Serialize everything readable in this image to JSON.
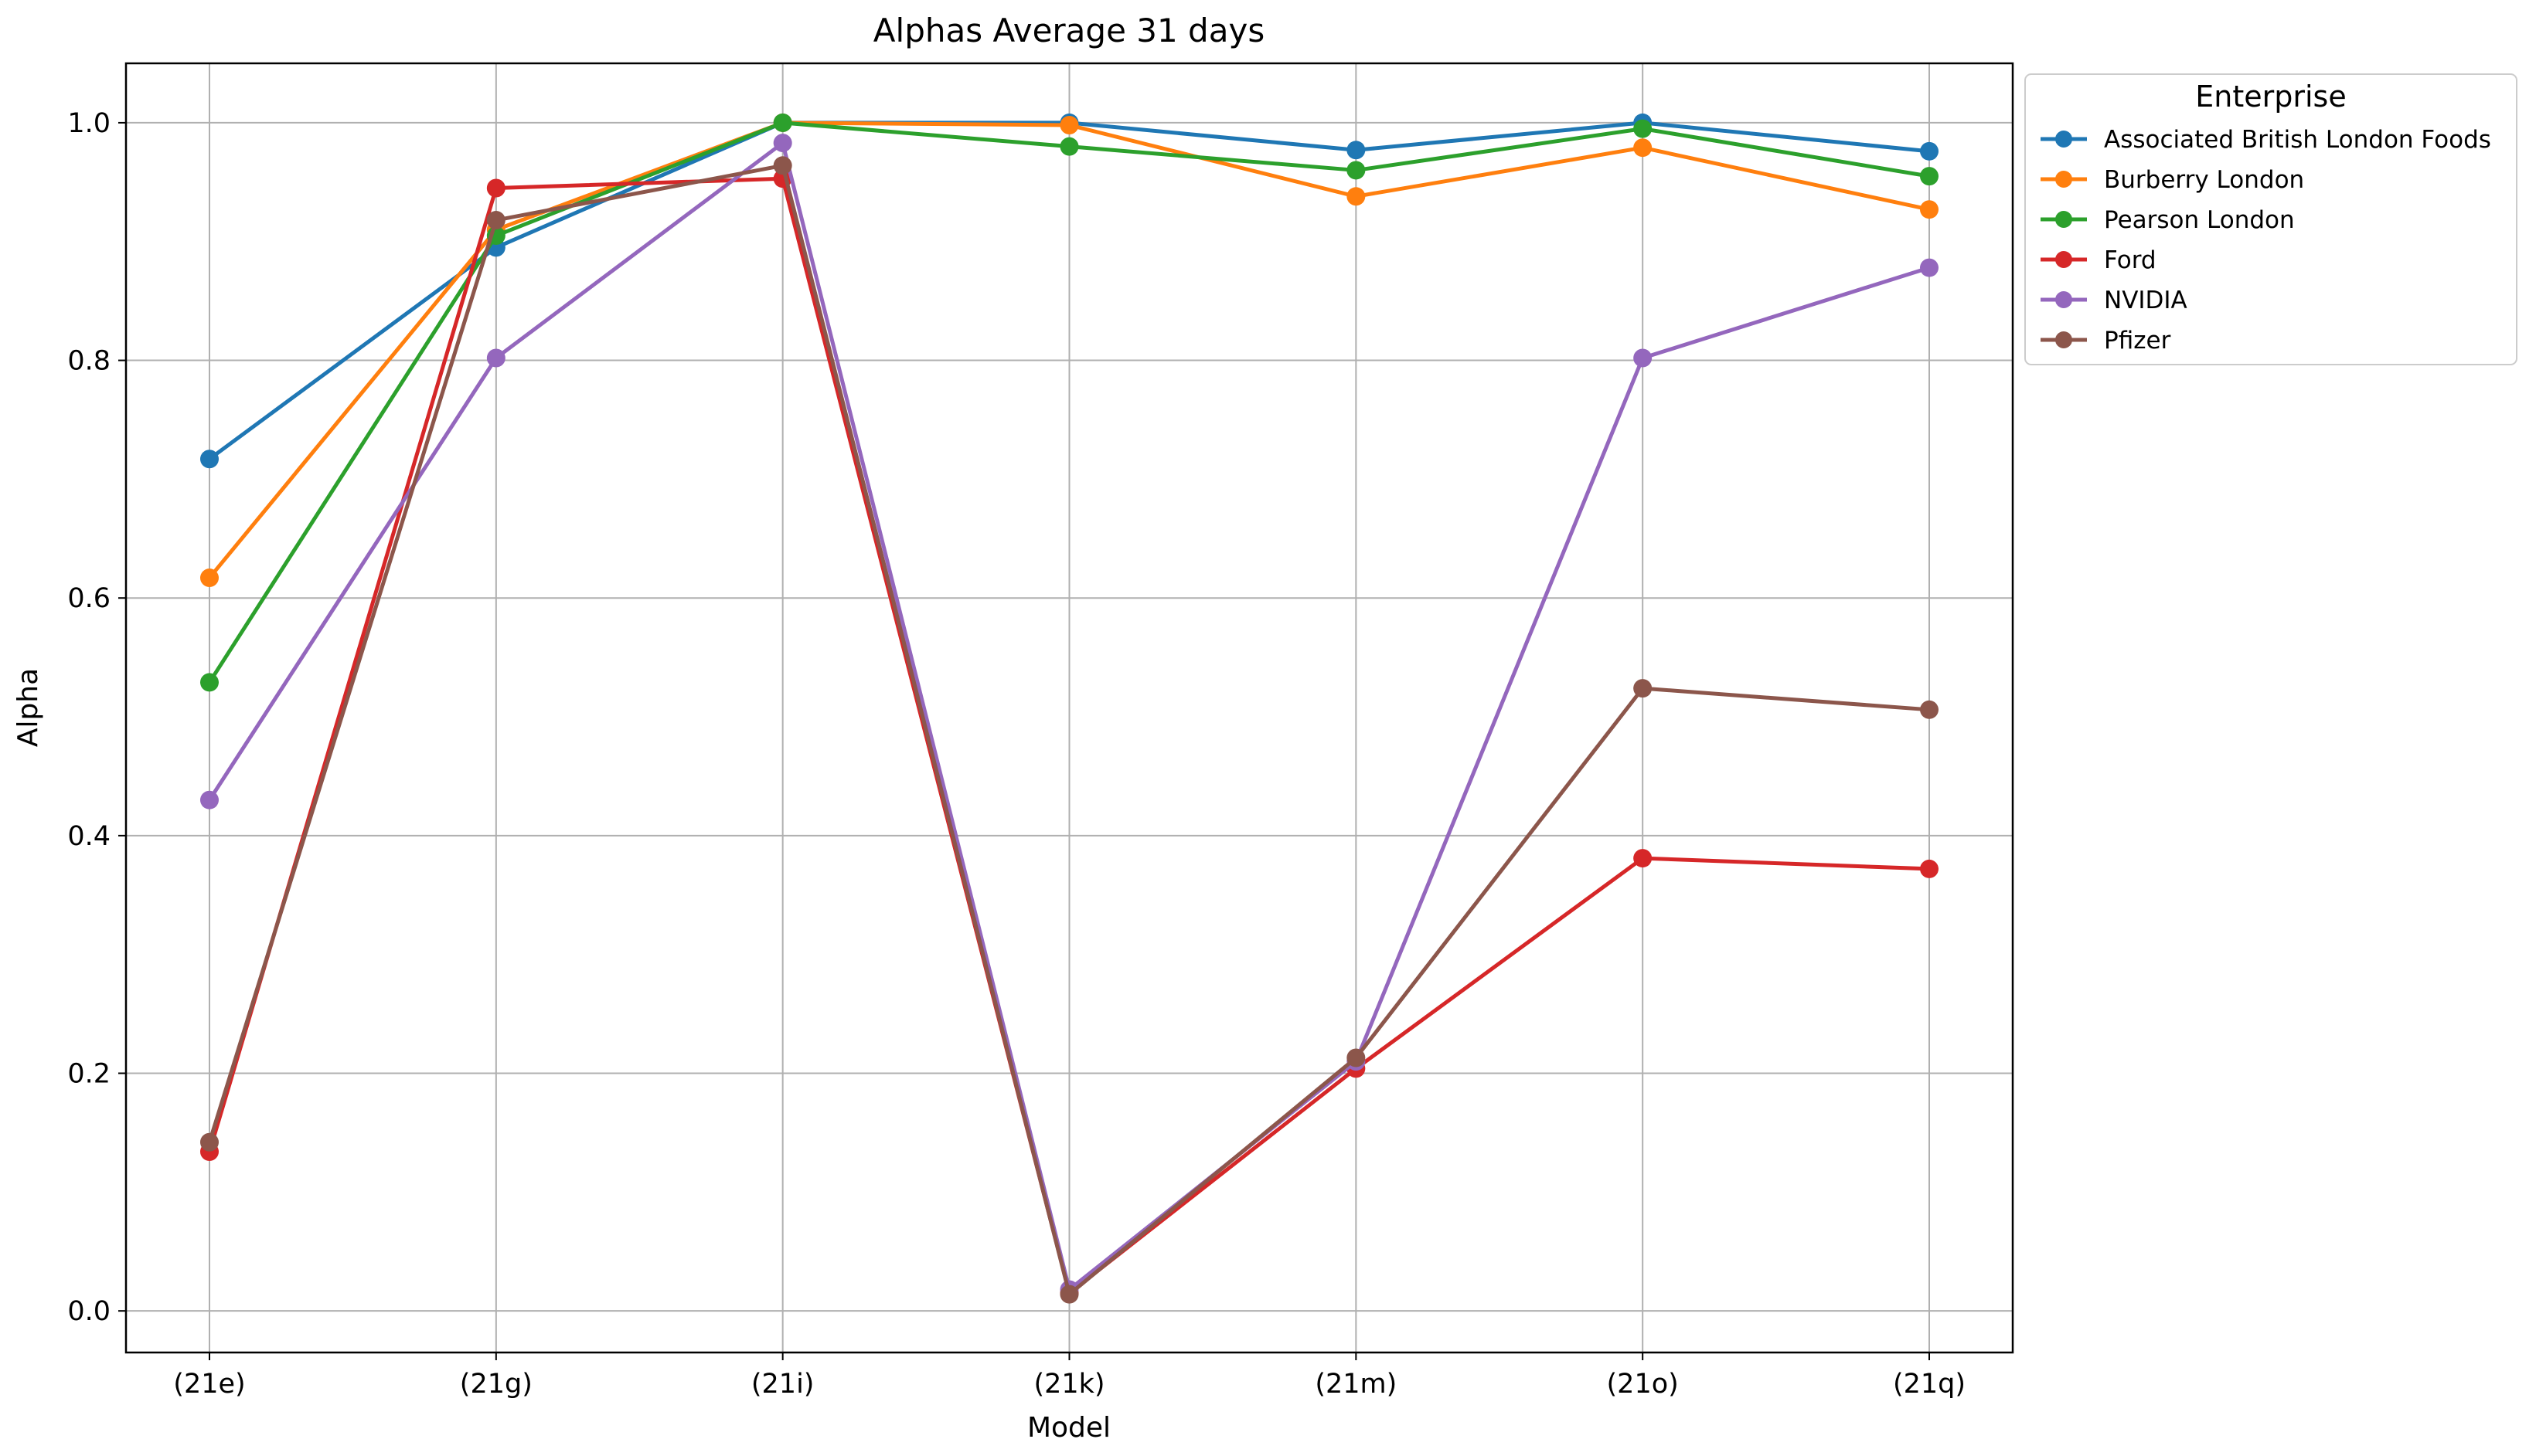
{
  "chart_data": {
    "type": "line",
    "title": "Alphas Average 31 days",
    "xlabel": "Model",
    "ylabel": "Alpha",
    "categories": [
      "(21e)",
      "(21g)",
      "(21i)",
      "(21k)",
      "(21m)",
      "(21o)",
      "(21q)"
    ],
    "ylim": [
      -0.035,
      1.05
    ],
    "yticks": [
      0.0,
      0.2,
      0.4,
      0.6,
      0.8,
      1.0
    ],
    "ytick_labels": [
      "0.0",
      "0.2",
      "0.4",
      "0.6",
      "0.8",
      "1.0"
    ],
    "grid": true,
    "legend_title": "Enterprise",
    "legend_position": "outside-top-right",
    "series": [
      {
        "name": "Associated British London Foods",
        "color": "#1f77b4",
        "values": [
          0.717,
          0.895,
          1.0,
          1.0,
          0.977,
          1.0,
          0.976
        ]
      },
      {
        "name": "Burberry London",
        "color": "#ff7f0e",
        "values": [
          0.617,
          0.91,
          1.0,
          0.998,
          0.938,
          0.979,
          0.927
        ]
      },
      {
        "name": "Pearson London",
        "color": "#2ca02c",
        "values": [
          0.529,
          0.905,
          1.0,
          0.98,
          0.96,
          0.995,
          0.955
        ]
      },
      {
        "name": "Ford",
        "color": "#d62728",
        "values": [
          0.134,
          0.945,
          0.953,
          0.015,
          0.204,
          0.381,
          0.372
        ]
      },
      {
        "name": "NVIDIA",
        "color": "#9467bd",
        "values": [
          0.43,
          0.802,
          0.983,
          0.018,
          0.21,
          0.802,
          0.878
        ]
      },
      {
        "name": "Pfizer",
        "color": "#8c564b",
        "values": [
          0.142,
          0.918,
          0.964,
          0.014,
          0.213,
          0.524,
          0.506
        ]
      }
    ]
  }
}
